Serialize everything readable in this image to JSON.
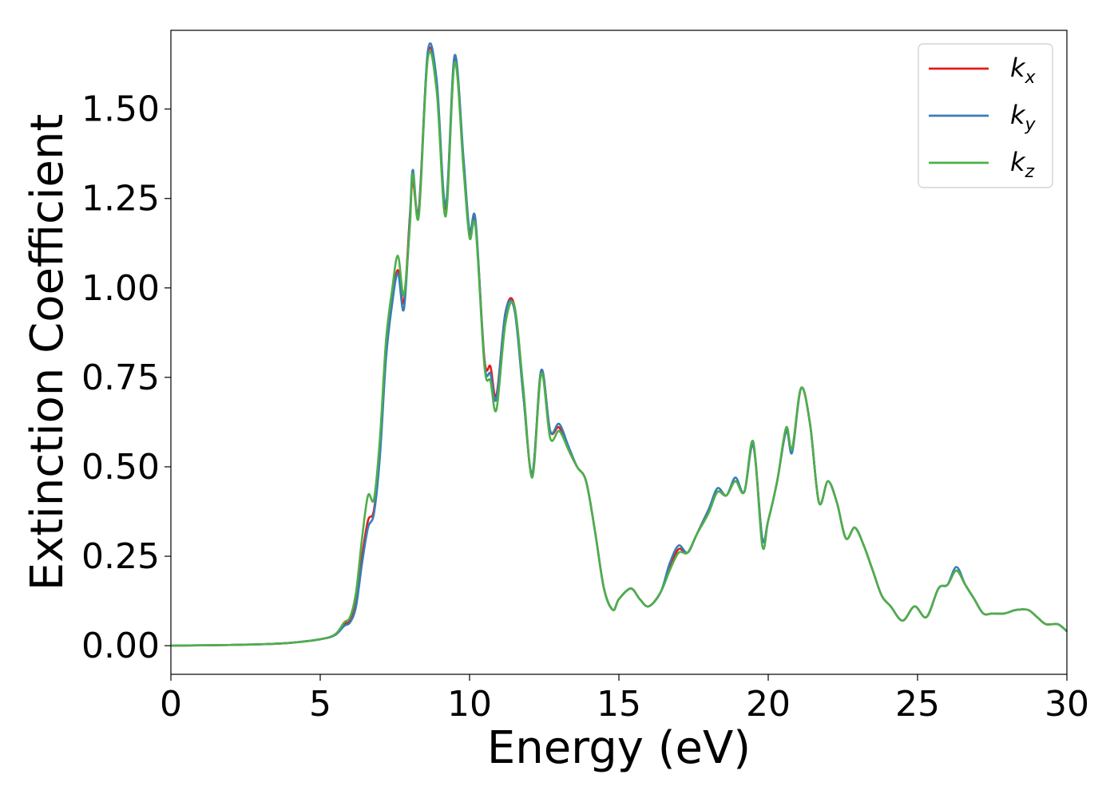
{
  "chart_data": {
    "type": "line",
    "xlabel": "Energy (eV)",
    "ylabel": "Extinction Coefficient",
    "xlim": [
      0,
      30
    ],
    "ylim": [
      -0.08,
      1.72
    ],
    "xticks": [
      "0",
      "5",
      "10",
      "15",
      "20",
      "25",
      "30"
    ],
    "yticks": [
      "0.00",
      "0.25",
      "0.50",
      "0.75",
      "1.00",
      "1.25",
      "1.50"
    ],
    "grid": false,
    "legend_position": "top-right",
    "x": [
      0,
      1,
      2,
      3,
      4,
      5,
      5.5,
      5.8,
      6.0,
      6.2,
      6.4,
      6.6,
      6.8,
      7.0,
      7.2,
      7.4,
      7.6,
      7.8,
      8.0,
      8.1,
      8.3,
      8.6,
      8.9,
      9.2,
      9.5,
      9.8,
      10.0,
      10.2,
      10.5,
      10.7,
      10.9,
      11.2,
      11.5,
      11.8,
      12.1,
      12.4,
      12.7,
      13.0,
      13.3,
      13.6,
      13.9,
      14.2,
      14.5,
      14.8,
      15.0,
      15.4,
      15.7,
      16.0,
      16.4,
      16.7,
      17.0,
      17.3,
      17.6,
      18.0,
      18.3,
      18.6,
      18.9,
      19.2,
      19.5,
      19.8,
      20.0,
      20.3,
      20.6,
      20.8,
      21.1,
      21.4,
      21.7,
      22.0,
      22.3,
      22.6,
      22.9,
      23.2,
      23.5,
      23.8,
      24.1,
      24.5,
      24.9,
      25.3,
      25.7,
      26.0,
      26.3,
      26.6,
      26.9,
      27.2,
      27.5,
      27.9,
      28.3,
      28.7,
      29.0,
      29.3,
      29.7,
      30.0
    ],
    "series": [
      {
        "name": "k_x",
        "color": "#e41a1c",
        "values": [
          0,
          0.001,
          0.002,
          0.004,
          0.008,
          0.018,
          0.03,
          0.06,
          0.07,
          0.12,
          0.25,
          0.35,
          0.38,
          0.55,
          0.82,
          0.96,
          1.05,
          0.96,
          1.2,
          1.3,
          1.22,
          1.65,
          1.57,
          1.22,
          1.64,
          1.35,
          1.15,
          1.18,
          0.8,
          0.78,
          0.7,
          0.93,
          0.95,
          0.7,
          0.48,
          0.77,
          0.6,
          0.61,
          0.55,
          0.5,
          0.46,
          0.32,
          0.16,
          0.1,
          0.13,
          0.16,
          0.13,
          0.11,
          0.15,
          0.22,
          0.27,
          0.26,
          0.31,
          0.38,
          0.43,
          0.42,
          0.46,
          0.43,
          0.56,
          0.3,
          0.35,
          0.46,
          0.6,
          0.55,
          0.72,
          0.62,
          0.4,
          0.46,
          0.4,
          0.3,
          0.33,
          0.28,
          0.21,
          0.14,
          0.11,
          0.07,
          0.11,
          0.08,
          0.16,
          0.17,
          0.21,
          0.17,
          0.13,
          0.09,
          0.09,
          0.09,
          0.1,
          0.1,
          0.08,
          0.06,
          0.06,
          0.04
        ]
      },
      {
        "name": "k_y",
        "color": "#377eb8",
        "values": [
          0,
          0.001,
          0.002,
          0.004,
          0.008,
          0.018,
          0.03,
          0.055,
          0.065,
          0.11,
          0.23,
          0.33,
          0.37,
          0.53,
          0.8,
          0.95,
          1.04,
          0.94,
          1.19,
          1.33,
          1.21,
          1.66,
          1.58,
          1.23,
          1.65,
          1.36,
          1.16,
          1.19,
          0.79,
          0.76,
          0.69,
          0.93,
          0.94,
          0.7,
          0.48,
          0.77,
          0.6,
          0.62,
          0.56,
          0.5,
          0.46,
          0.32,
          0.16,
          0.1,
          0.13,
          0.16,
          0.13,
          0.11,
          0.15,
          0.23,
          0.28,
          0.26,
          0.31,
          0.38,
          0.44,
          0.42,
          0.47,
          0.43,
          0.56,
          0.3,
          0.35,
          0.46,
          0.6,
          0.54,
          0.72,
          0.62,
          0.4,
          0.46,
          0.4,
          0.3,
          0.33,
          0.28,
          0.21,
          0.14,
          0.11,
          0.07,
          0.11,
          0.08,
          0.16,
          0.17,
          0.22,
          0.17,
          0.13,
          0.09,
          0.09,
          0.09,
          0.1,
          0.1,
          0.08,
          0.06,
          0.06,
          0.04
        ]
      },
      {
        "name": "k_z",
        "color": "#4daf4a",
        "values": [
          0,
          0.001,
          0.002,
          0.004,
          0.008,
          0.018,
          0.032,
          0.065,
          0.08,
          0.15,
          0.3,
          0.42,
          0.41,
          0.58,
          0.85,
          0.99,
          1.09,
          0.98,
          1.17,
          1.32,
          1.2,
          1.64,
          1.55,
          1.2,
          1.63,
          1.33,
          1.14,
          1.17,
          0.78,
          0.74,
          0.66,
          0.9,
          0.95,
          0.72,
          0.47,
          0.76,
          0.58,
          0.6,
          0.55,
          0.5,
          0.46,
          0.32,
          0.16,
          0.1,
          0.13,
          0.16,
          0.13,
          0.11,
          0.15,
          0.21,
          0.26,
          0.26,
          0.31,
          0.37,
          0.43,
          0.42,
          0.46,
          0.43,
          0.57,
          0.28,
          0.35,
          0.46,
          0.61,
          0.55,
          0.72,
          0.62,
          0.4,
          0.46,
          0.4,
          0.3,
          0.33,
          0.28,
          0.21,
          0.14,
          0.11,
          0.07,
          0.11,
          0.08,
          0.16,
          0.17,
          0.21,
          0.17,
          0.13,
          0.09,
          0.09,
          0.09,
          0.1,
          0.1,
          0.08,
          0.06,
          0.06,
          0.04
        ]
      }
    ],
    "legend": [
      {
        "base": "k",
        "sub": "x",
        "color": "#e41a1c"
      },
      {
        "base": "k",
        "sub": "y",
        "color": "#377eb8"
      },
      {
        "base": "k",
        "sub": "z",
        "color": "#4daf4a"
      }
    ]
  }
}
